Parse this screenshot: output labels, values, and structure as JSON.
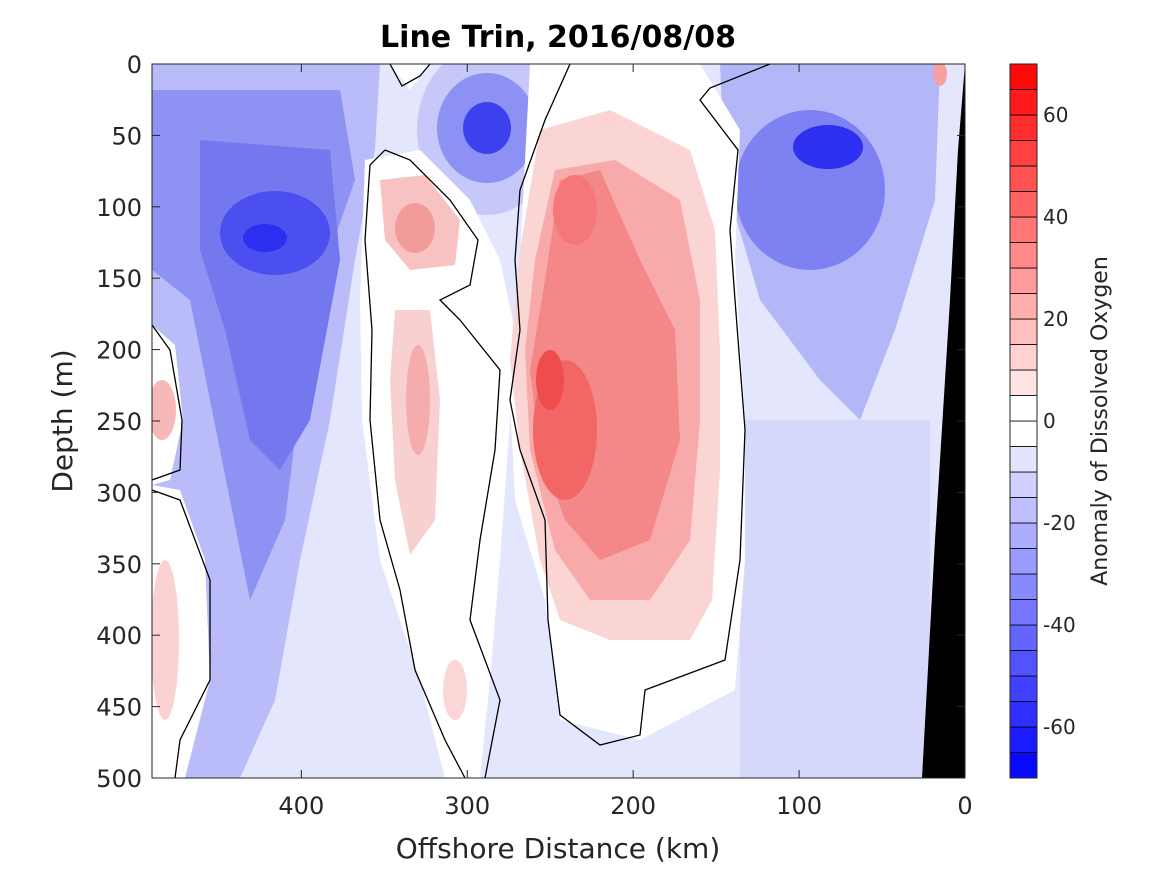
{
  "chart_data": {
    "type": "contour",
    "title": "Line Trin, 2016/08/08",
    "xlabel": "Offshore Distance (km)",
    "ylabel": "Depth (m)",
    "colorbar_label": "Anomaly of Dissolved Oxygen",
    "xlim": [
      490,
      0
    ],
    "ylim": [
      500,
      0
    ],
    "x_ticks": [
      "400",
      "300",
      "200",
      "100",
      "0"
    ],
    "x_tick_values": [
      400,
      300,
      200,
      100,
      0
    ],
    "y_ticks": [
      "0",
      "50",
      "100",
      "150",
      "200",
      "250",
      "300",
      "350",
      "400",
      "450",
      "500"
    ],
    "y_tick_values": [
      0,
      50,
      100,
      150,
      200,
      250,
      300,
      350,
      400,
      450,
      500
    ],
    "colorbar_range": [
      -70,
      70
    ],
    "colorbar_step": 5,
    "colorbar_ticks": [
      "60",
      "40",
      "20",
      "0",
      "-20",
      "-40",
      "-60"
    ],
    "colorbar_tick_values": [
      60,
      40,
      20,
      0,
      -20,
      -40,
      -60
    ],
    "colormap": {
      "negative": "#0000ff",
      "zero": "#ffffff",
      "positive": "#ff0000"
    },
    "zero_contour": "black line",
    "bathymetry_color": "#000000",
    "features": [
      {
        "type": "negative",
        "x_km": 415,
        "depth_m": 120,
        "value": -45
      },
      {
        "type": "negative",
        "x_km": 285,
        "depth_m": 45,
        "value": -45
      },
      {
        "type": "negative",
        "x_km": 85,
        "depth_m": 58,
        "value": -60
      },
      {
        "type": "positive",
        "x_km": 230,
        "depth_m": 240,
        "value": 45
      },
      {
        "type": "positive",
        "x_km": 325,
        "depth_m": 120,
        "value": 20
      },
      {
        "type": "positive",
        "x_km": 335,
        "depth_m": 270,
        "value": 15
      }
    ]
  }
}
